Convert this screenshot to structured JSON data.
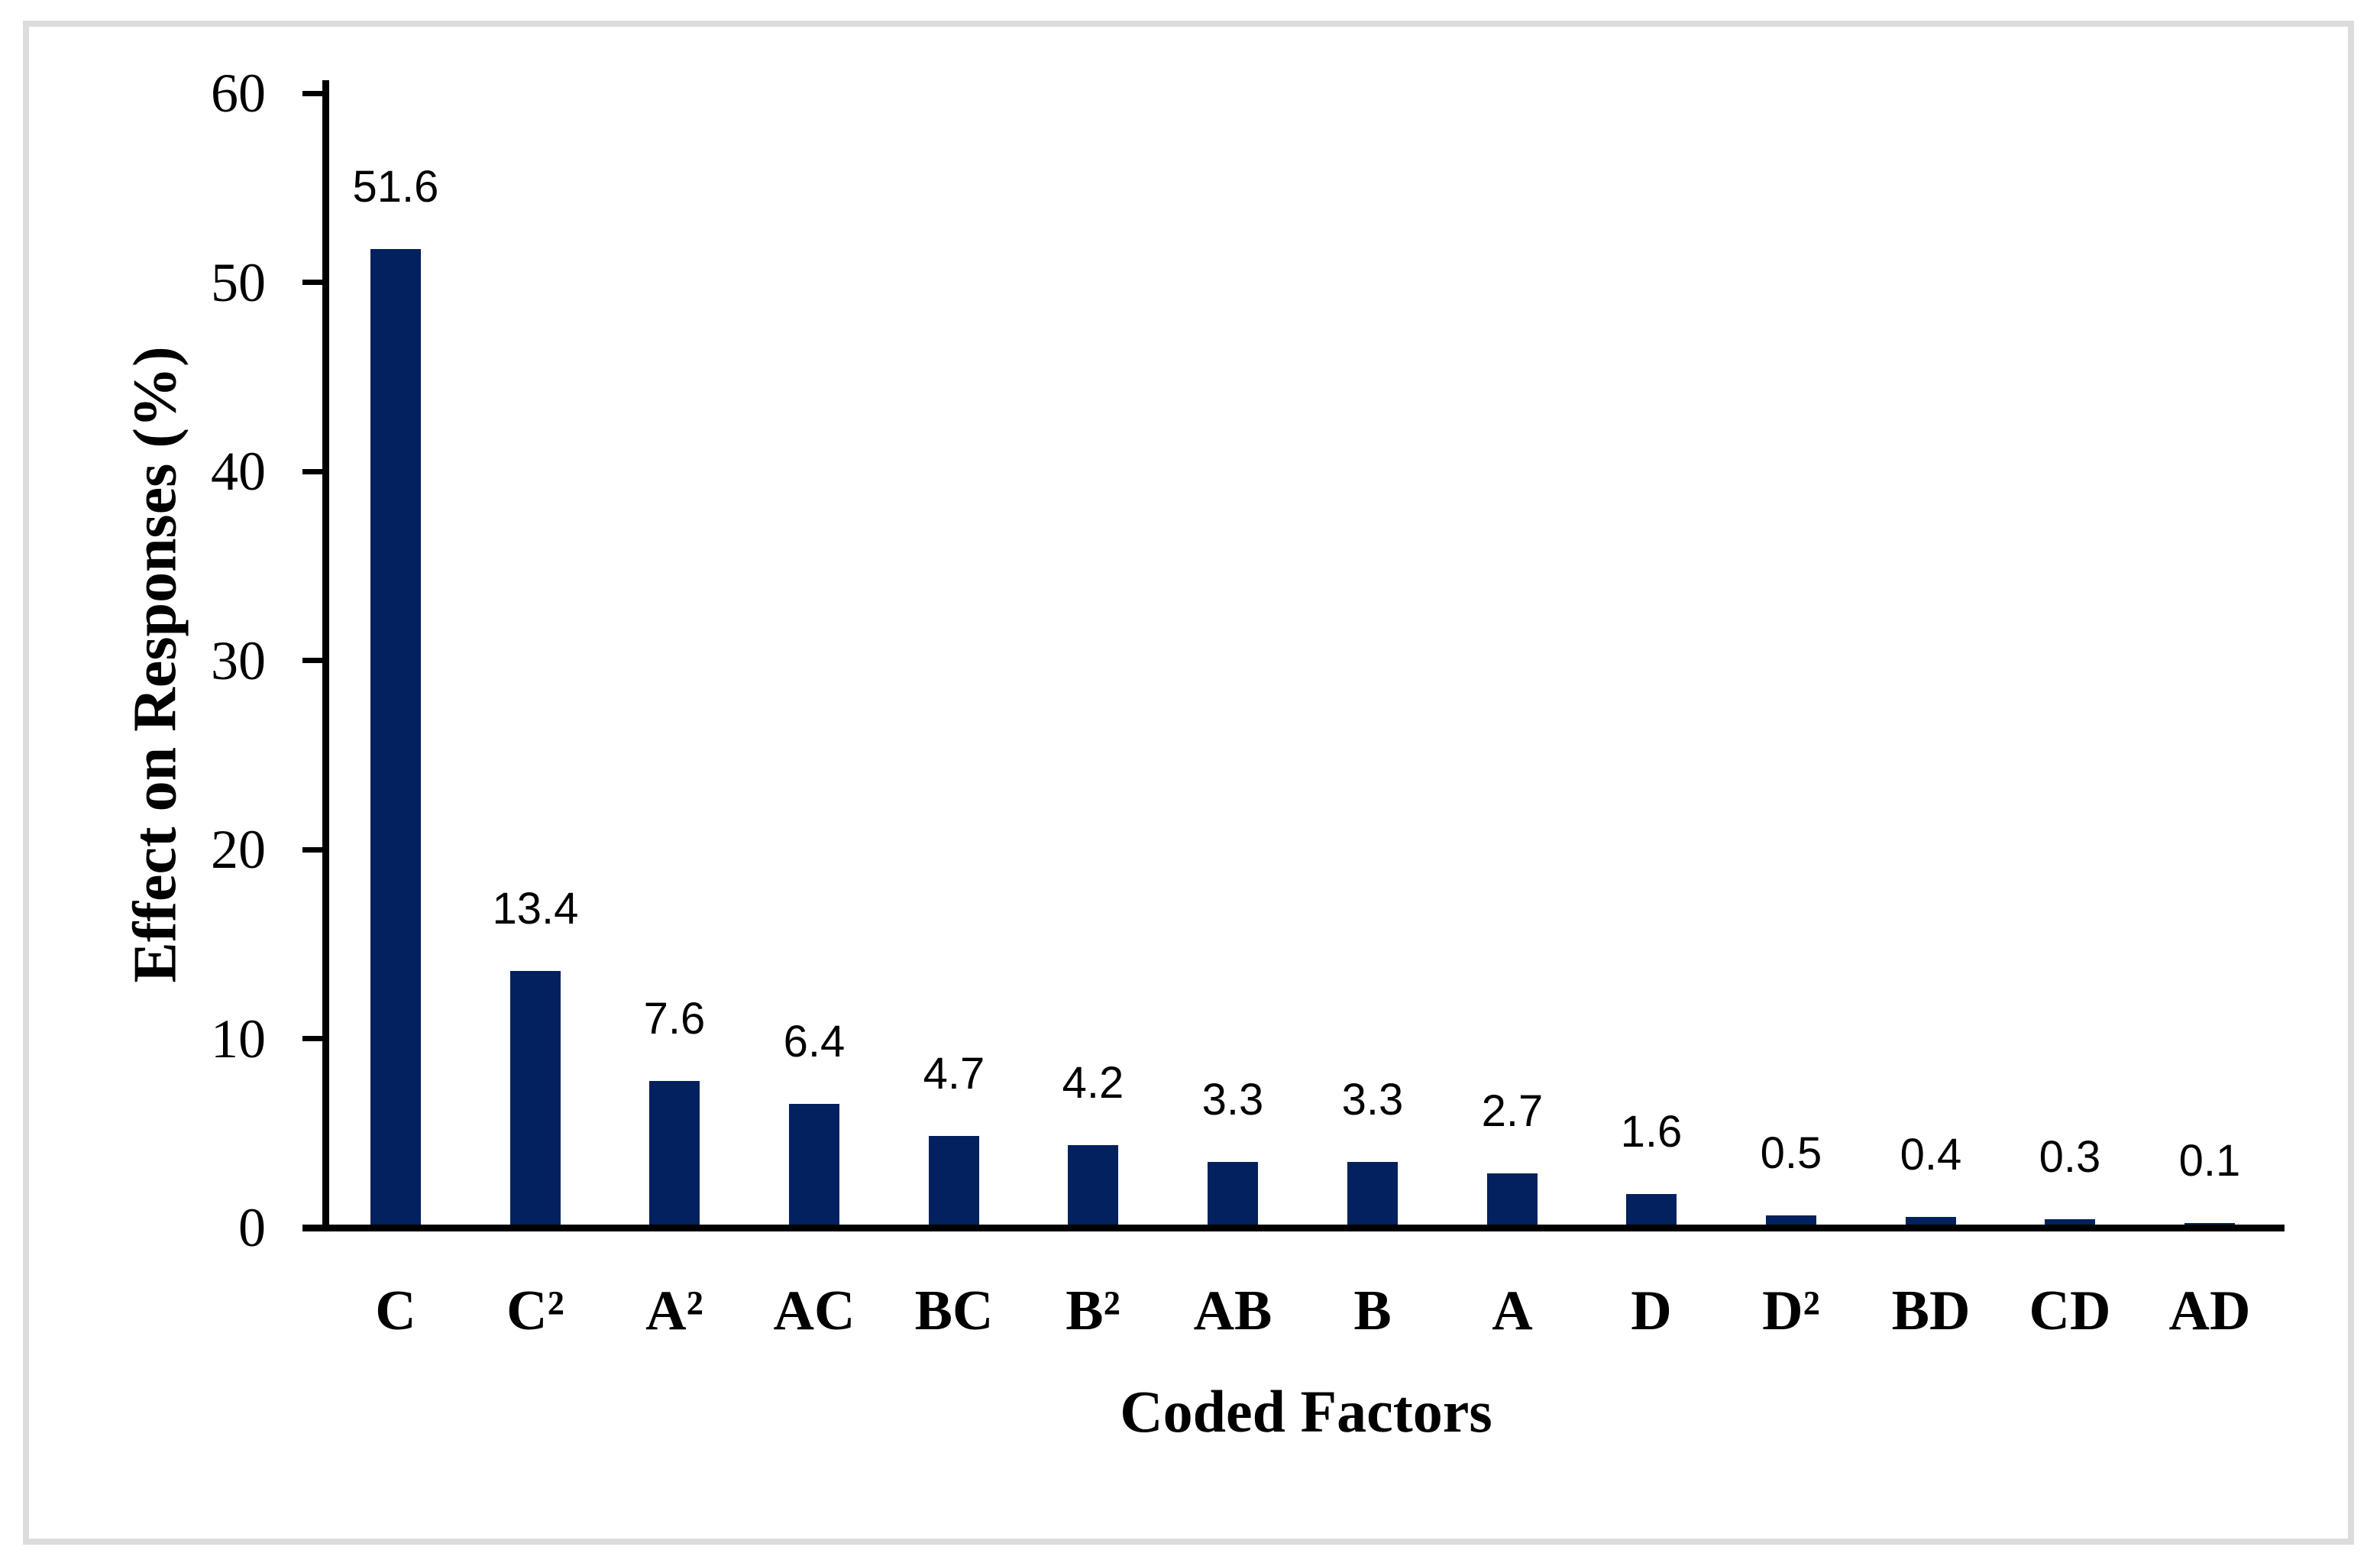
{
  "chart_data": {
    "type": "bar",
    "title": "",
    "categories": [
      "C",
      "C²",
      "A²",
      "AC",
      "BC",
      "B²",
      "AB",
      "B",
      "A",
      "D",
      "D²",
      "BD",
      "CD",
      "AD"
    ],
    "values": [
      51.6,
      13.4,
      7.6,
      6.4,
      4.7,
      4.2,
      3.3,
      3.3,
      2.7,
      1.6,
      0.5,
      0.4,
      0.3,
      0.1
    ],
    "data_labels": [
      "51.6",
      "13.4",
      "7.6",
      "6.4",
      "4.7",
      "4.2",
      "3.3",
      "3.3",
      "2.7",
      "1.6",
      "0.5",
      "0.4",
      "0.3",
      "0.1"
    ],
    "xlabel": "Coded Factors",
    "ylabel": "Effect on Responses (%)",
    "ylim": [
      0,
      60
    ],
    "yticks": [
      0,
      10,
      20,
      30,
      40,
      50,
      60
    ],
    "grid": false,
    "legend": null,
    "bar_color": "#02215E",
    "axis_color": "#000000",
    "frame_color": "#DCDCDC",
    "background_color": "#FFFFFF"
  }
}
